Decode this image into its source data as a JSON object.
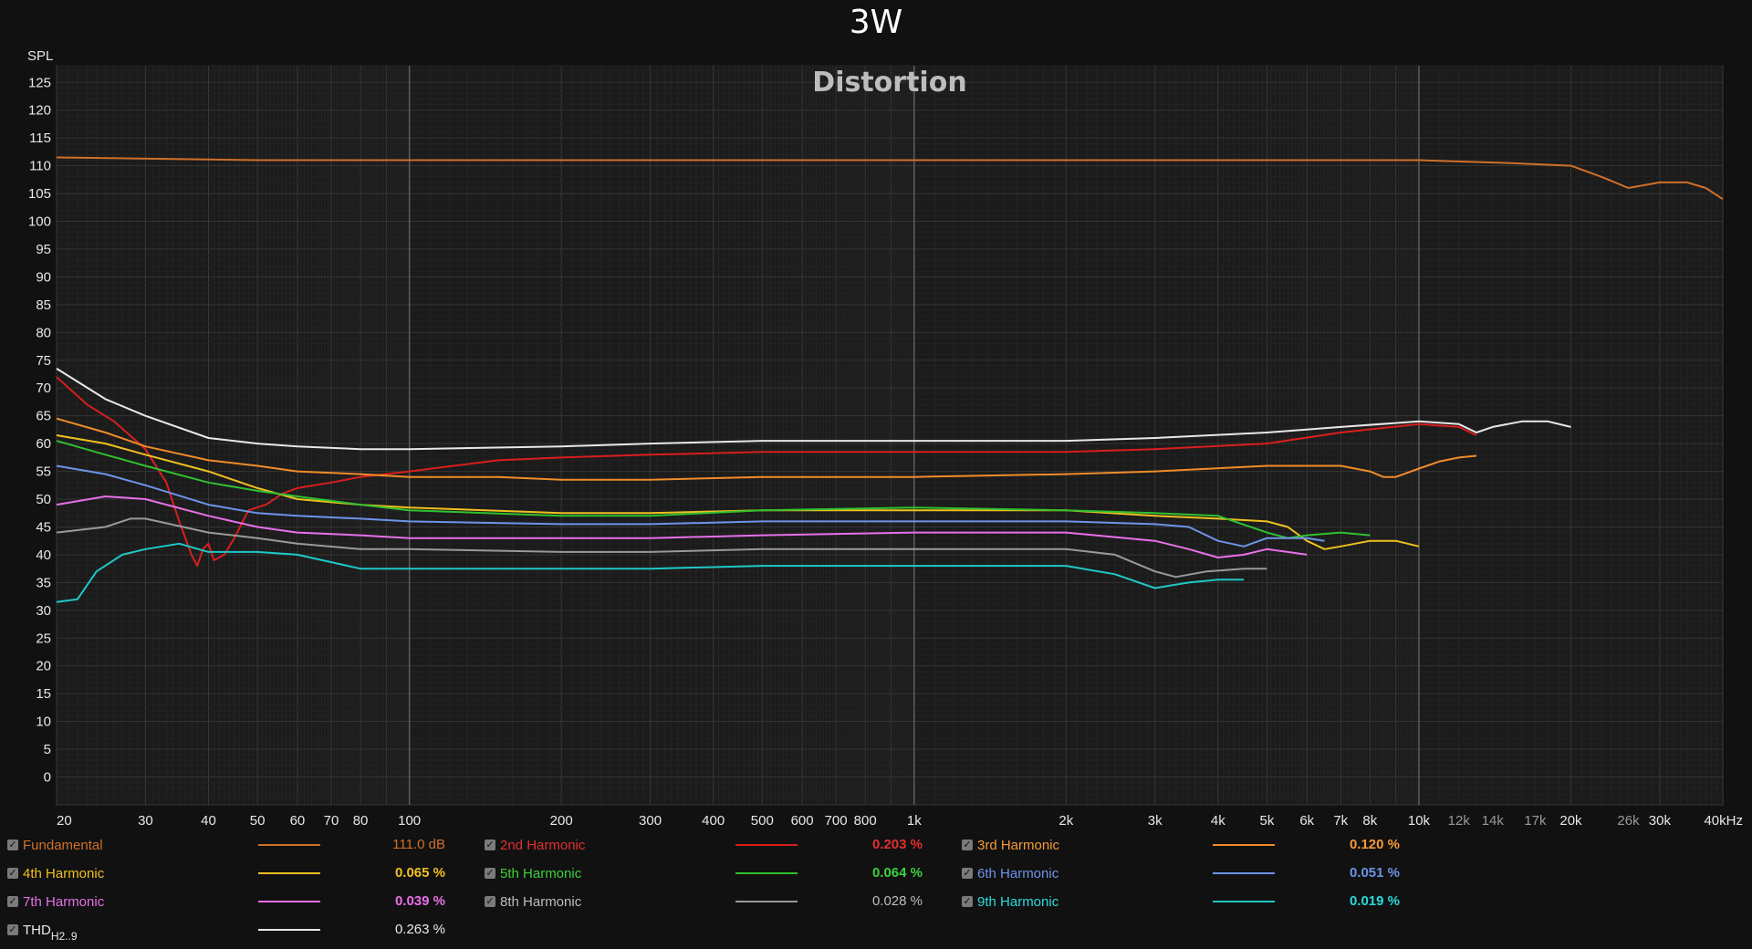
{
  "page": {
    "title": "3W"
  },
  "chart_data": {
    "type": "line",
    "title": "Distortion",
    "ylabel": "SPL",
    "xscale": "log",
    "xlim": [
      20,
      40000
    ],
    "ylim": [
      -5,
      128
    ],
    "grid": true,
    "y_ticks": [
      "0",
      "5",
      "10",
      "15",
      "20",
      "25",
      "30",
      "35",
      "40",
      "45",
      "50",
      "55",
      "60",
      "65",
      "70",
      "75",
      "80",
      "85",
      "90",
      "95",
      "100",
      "105",
      "110",
      "115",
      "120",
      "125"
    ],
    "x_ticks": [
      {
        "v": 20,
        "label": "20"
      },
      {
        "v": 30,
        "label": "30"
      },
      {
        "v": 40,
        "label": "40"
      },
      {
        "v": 50,
        "label": "50"
      },
      {
        "v": 60,
        "label": "60"
      },
      {
        "v": 70,
        "label": "70"
      },
      {
        "v": 80,
        "label": "80"
      },
      {
        "v": 100,
        "label": "100"
      },
      {
        "v": 200,
        "label": "200"
      },
      {
        "v": 300,
        "label": "300"
      },
      {
        "v": 400,
        "label": "400"
      },
      {
        "v": 500,
        "label": "500"
      },
      {
        "v": 600,
        "label": "600"
      },
      {
        "v": 700,
        "label": "700"
      },
      {
        "v": 800,
        "label": "800"
      },
      {
        "v": 1000,
        "label": "1k"
      },
      {
        "v": 2000,
        "label": "2k"
      },
      {
        "v": 3000,
        "label": "3k"
      },
      {
        "v": 4000,
        "label": "4k"
      },
      {
        "v": 5000,
        "label": "5k"
      },
      {
        "v": 6000,
        "label": "6k"
      },
      {
        "v": 7000,
        "label": "7k"
      },
      {
        "v": 8000,
        "label": "8k"
      },
      {
        "v": 10000,
        "label": "10k"
      },
      {
        "v": 12000,
        "label": "12k"
      },
      {
        "v": 14000,
        "label": "14k"
      },
      {
        "v": 17000,
        "label": "17k"
      },
      {
        "v": 20000,
        "label": "20k"
      },
      {
        "v": 26000,
        "label": "26k"
      },
      {
        "v": 30000,
        "label": "30k"
      },
      {
        "v": 40000,
        "label": "40kHz"
      }
    ],
    "series": [
      {
        "name": "Fundamental",
        "value": "111.0 dB",
        "color": "#d0702a",
        "label_color": "#d0702a",
        "points": [
          [
            20,
            111.5
          ],
          [
            50,
            111
          ],
          [
            100,
            111
          ],
          [
            1000,
            111
          ],
          [
            5000,
            111
          ],
          [
            10000,
            111
          ],
          [
            15000,
            110.5
          ],
          [
            20000,
            110
          ],
          [
            23000,
            108
          ],
          [
            26000,
            106
          ],
          [
            30000,
            107
          ],
          [
            34000,
            107
          ],
          [
            37000,
            106
          ],
          [
            40000,
            104
          ]
        ]
      },
      {
        "name": "2nd Harmonic",
        "value": "0.203 %",
        "color": "#d81e1e",
        "label_color": "#e23030",
        "points": [
          [
            20,
            72
          ],
          [
            23,
            67
          ],
          [
            26,
            64
          ],
          [
            30,
            59
          ],
          [
            33,
            53
          ],
          [
            35,
            46
          ],
          [
            37,
            40
          ],
          [
            38,
            38
          ],
          [
            39,
            41
          ],
          [
            40,
            42
          ],
          [
            41,
            39
          ],
          [
            43,
            40
          ],
          [
            45,
            43
          ],
          [
            48,
            48
          ],
          [
            52,
            49
          ],
          [
            56,
            51
          ],
          [
            60,
            52
          ],
          [
            70,
            53
          ],
          [
            80,
            54
          ],
          [
            100,
            55
          ],
          [
            150,
            57
          ],
          [
            200,
            57.5
          ],
          [
            300,
            58
          ],
          [
            500,
            58.5
          ],
          [
            1000,
            58.5
          ],
          [
            2000,
            58.5
          ],
          [
            3000,
            59
          ],
          [
            5000,
            60
          ],
          [
            7000,
            62
          ],
          [
            10000,
            63.5
          ],
          [
            12000,
            63
          ],
          [
            13000,
            61.5
          ]
        ]
      },
      {
        "name": "3rd Harmonic",
        "value": "0.120 %",
        "color": "#f08c2a",
        "label_color": "#f59a3a",
        "points": [
          [
            20,
            64.5
          ],
          [
            25,
            62
          ],
          [
            30,
            59.5
          ],
          [
            40,
            57
          ],
          [
            50,
            56
          ],
          [
            60,
            55
          ],
          [
            80,
            54.5
          ],
          [
            100,
            54
          ],
          [
            150,
            54
          ],
          [
            200,
            53.5
          ],
          [
            300,
            53.5
          ],
          [
            500,
            54
          ],
          [
            1000,
            54
          ],
          [
            2000,
            54.5
          ],
          [
            3000,
            55
          ],
          [
            5000,
            56
          ],
          [
            7000,
            56
          ],
          [
            8000,
            55
          ],
          [
            8500,
            54
          ],
          [
            9000,
            54
          ],
          [
            10000,
            55.5
          ],
          [
            11000,
            56.8
          ],
          [
            12000,
            57.5
          ],
          [
            13000,
            57.8
          ]
        ]
      },
      {
        "name": "4th Harmonic",
        "value": "0.065 %",
        "color": "#f0c020",
        "label_color": "#f0c020",
        "points": [
          [
            20,
            61.5
          ],
          [
            25,
            60
          ],
          [
            30,
            58
          ],
          [
            40,
            55
          ],
          [
            50,
            52
          ],
          [
            60,
            50
          ],
          [
            80,
            49
          ],
          [
            100,
            48.5
          ],
          [
            200,
            47.5
          ],
          [
            300,
            47.5
          ],
          [
            500,
            48
          ],
          [
            1000,
            48
          ],
          [
            2000,
            48
          ],
          [
            3000,
            47
          ],
          [
            4000,
            46.5
          ],
          [
            5000,
            46
          ],
          [
            5500,
            45
          ],
          [
            6000,
            42.5
          ],
          [
            6500,
            41
          ],
          [
            7000,
            41.5
          ],
          [
            8000,
            42.5
          ],
          [
            9000,
            42.5
          ],
          [
            10000,
            41.5
          ]
        ]
      },
      {
        "name": "5th Harmonic",
        "value": "0.064 %",
        "color": "#30c030",
        "label_color": "#3cd03c",
        "points": [
          [
            20,
            60.5
          ],
          [
            25,
            58
          ],
          [
            30,
            56
          ],
          [
            40,
            53
          ],
          [
            50,
            51.5
          ],
          [
            60,
            50.5
          ],
          [
            80,
            49
          ],
          [
            100,
            48
          ],
          [
            200,
            47
          ],
          [
            300,
            47
          ],
          [
            500,
            48
          ],
          [
            1000,
            48.5
          ],
          [
            2000,
            48
          ],
          [
            3000,
            47.5
          ],
          [
            4000,
            47
          ],
          [
            5000,
            44
          ],
          [
            5500,
            43
          ],
          [
            6000,
            43.5
          ],
          [
            7000,
            44
          ],
          [
            8000,
            43.5
          ]
        ]
      },
      {
        "name": "6th Harmonic",
        "value": "0.051 %",
        "color": "#6c94e8",
        "label_color": "#6c94e8",
        "points": [
          [
            20,
            56
          ],
          [
            25,
            54.5
          ],
          [
            30,
            52.5
          ],
          [
            40,
            49
          ],
          [
            50,
            47.5
          ],
          [
            60,
            47
          ],
          [
            80,
            46.5
          ],
          [
            100,
            46
          ],
          [
            200,
            45.5
          ],
          [
            300,
            45.5
          ],
          [
            500,
            46
          ],
          [
            1000,
            46
          ],
          [
            2000,
            46
          ],
          [
            3000,
            45.5
          ],
          [
            3500,
            45
          ],
          [
            4000,
            42.5
          ],
          [
            4500,
            41.5
          ],
          [
            5000,
            43
          ],
          [
            6000,
            43
          ],
          [
            6500,
            42.5
          ]
        ]
      },
      {
        "name": "7th Harmonic",
        "value": "0.039 %",
        "color": "#e870e8",
        "label_color": "#e870e8",
        "points": [
          [
            20,
            49
          ],
          [
            25,
            50.5
          ],
          [
            30,
            50
          ],
          [
            40,
            47
          ],
          [
            50,
            45
          ],
          [
            60,
            44
          ],
          [
            80,
            43.5
          ],
          [
            100,
            43
          ],
          [
            200,
            43
          ],
          [
            300,
            43
          ],
          [
            500,
            43.5
          ],
          [
            1000,
            44
          ],
          [
            2000,
            44
          ],
          [
            3000,
            42.5
          ],
          [
            3500,
            41
          ],
          [
            4000,
            39.5
          ],
          [
            4500,
            40
          ],
          [
            5000,
            41
          ],
          [
            5500,
            40.5
          ],
          [
            6000,
            40
          ]
        ]
      },
      {
        "name": "8th Harmonic",
        "value": "0.028 %",
        "color": "#9a9a9a",
        "label_color": "#bdbdbd",
        "points": [
          [
            20,
            44
          ],
          [
            25,
            45
          ],
          [
            28,
            46.5
          ],
          [
            30,
            46.5
          ],
          [
            40,
            44
          ],
          [
            50,
            43
          ],
          [
            60,
            42
          ],
          [
            80,
            41
          ],
          [
            100,
            41
          ],
          [
            200,
            40.5
          ],
          [
            300,
            40.5
          ],
          [
            500,
            41
          ],
          [
            1000,
            41
          ],
          [
            2000,
            41
          ],
          [
            2500,
            40
          ],
          [
            3000,
            37
          ],
          [
            3300,
            36
          ],
          [
            3800,
            37
          ],
          [
            4500,
            37.5
          ],
          [
            5000,
            37.5
          ]
        ]
      },
      {
        "name": "9th Harmonic",
        "value": "0.019 %",
        "color": "#20c8c8",
        "label_color": "#2adada",
        "points": [
          [
            20,
            31.5
          ],
          [
            22,
            32
          ],
          [
            24,
            37
          ],
          [
            27,
            40
          ],
          [
            30,
            41
          ],
          [
            35,
            42
          ],
          [
            40,
            40.5
          ],
          [
            50,
            40.5
          ],
          [
            60,
            40
          ],
          [
            80,
            37.5
          ],
          [
            100,
            37.5
          ],
          [
            200,
            37.5
          ],
          [
            300,
            37.5
          ],
          [
            500,
            38
          ],
          [
            1000,
            38
          ],
          [
            2000,
            38
          ],
          [
            2500,
            36.5
          ],
          [
            3000,
            34
          ],
          [
            3500,
            35
          ],
          [
            4000,
            35.5
          ],
          [
            4500,
            35.5
          ]
        ]
      },
      {
        "name": "THD",
        "value": "0.263 %",
        "color": "#e8e8e8",
        "label_color": "#e8e8e8",
        "points": [
          [
            20,
            73.5
          ],
          [
            25,
            68
          ],
          [
            30,
            65
          ],
          [
            40,
            61
          ],
          [
            50,
            60
          ],
          [
            60,
            59.5
          ],
          [
            80,
            59
          ],
          [
            100,
            59
          ],
          [
            200,
            59.5
          ],
          [
            300,
            60
          ],
          [
            500,
            60.5
          ],
          [
            1000,
            60.5
          ],
          [
            2000,
            60.5
          ],
          [
            3000,
            61
          ],
          [
            5000,
            62
          ],
          [
            7000,
            63
          ],
          [
            10000,
            64
          ],
          [
            12000,
            63.5
          ],
          [
            13000,
            62
          ],
          [
            14000,
            63
          ],
          [
            16000,
            64
          ],
          [
            18000,
            64
          ],
          [
            20000,
            63
          ]
        ]
      }
    ]
  },
  "legend": {
    "thd_subscript": "H2..9"
  }
}
